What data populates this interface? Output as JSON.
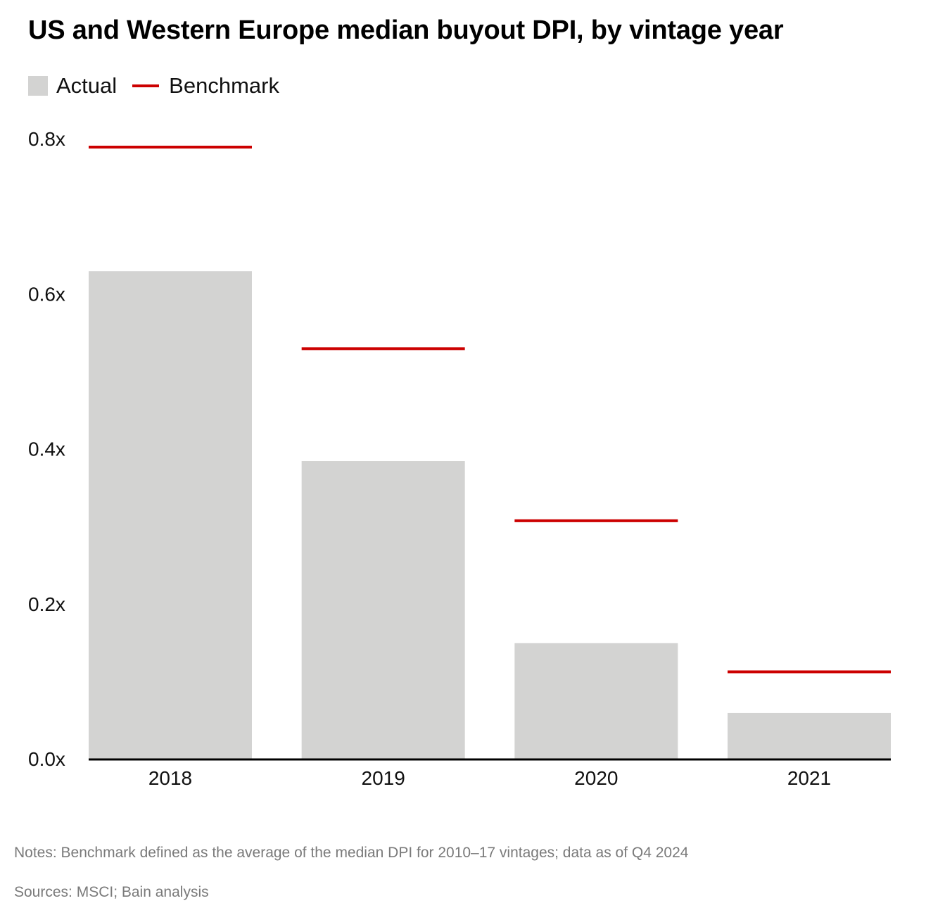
{
  "chart_data": {
    "type": "bar",
    "title": "US and Western Europe median buyout DPI, by vintage year",
    "categories": [
      "2018",
      "2019",
      "2020",
      "2021"
    ],
    "series": [
      {
        "name": "Actual",
        "kind": "bar",
        "values": [
          0.63,
          0.385,
          0.15,
          0.06
        ]
      },
      {
        "name": "Benchmark",
        "kind": "line-marker",
        "values": [
          0.79,
          0.53,
          0.308,
          0.113
        ]
      }
    ],
    "yticks": [
      "0.0x",
      "0.2x",
      "0.4x",
      "0.6x",
      "0.8x"
    ],
    "ylim": [
      0,
      0.8
    ],
    "xlabel": "",
    "ylabel": "",
    "legend_position": "top-left"
  },
  "colors": {
    "bar": "#d3d3d2",
    "benchmark": "#cc0000",
    "axis": "#000000"
  },
  "footer": {
    "notes": "Notes: Benchmark defined as the average of the median DPI for 2010–17 vintages; data as of Q4 2024",
    "sources": "Sources: MSCI; Bain analysis"
  }
}
